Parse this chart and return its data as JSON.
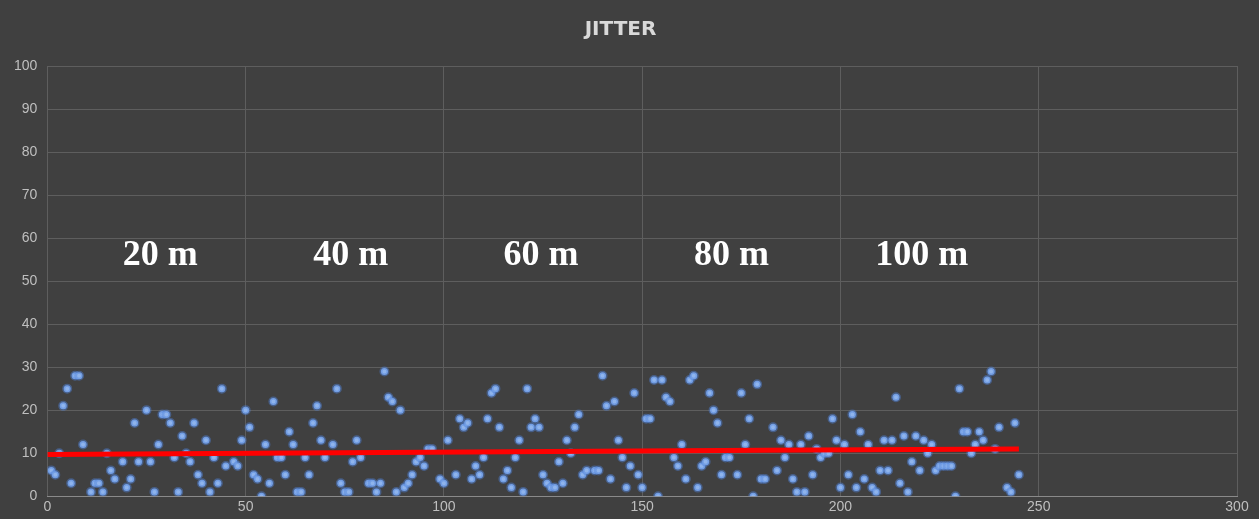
{
  "chart_data": {
    "type": "scatter",
    "title": "JITTER",
    "xlim": [
      0,
      300
    ],
    "xticks": [
      0,
      50,
      100,
      150,
      200,
      250,
      300
    ],
    "ylim": [
      0,
      100
    ],
    "yticks": [
      0,
      10,
      20,
      30,
      40,
      50,
      60,
      70,
      80,
      90,
      100
    ],
    "grid": true,
    "legend": false,
    "annotations": [
      "20 m",
      "40 m",
      "60 m",
      "80 m",
      "100 m"
    ],
    "series": [
      {
        "color": "#8fb4ec",
        "marker": "circle",
        "x": [
          1,
          2,
          3,
          4,
          5,
          6,
          7,
          8,
          9,
          11,
          12,
          13,
          14,
          15,
          16,
          17,
          19,
          20,
          21,
          22,
          23,
          25,
          26,
          27,
          28,
          29,
          30,
          31,
          32,
          33,
          34,
          35,
          36,
          37,
          38,
          39,
          40,
          41,
          42,
          43,
          44,
          45,
          47,
          48,
          49,
          50,
          51,
          52,
          53,
          54,
          55,
          56,
          57,
          58,
          59,
          60,
          61,
          62,
          63,
          64,
          65,
          66,
          67,
          68,
          69,
          70,
          72,
          73,
          74,
          75,
          76,
          77,
          78,
          79,
          81,
          82,
          83,
          84,
          85,
          86,
          87,
          88,
          89,
          90,
          91,
          92,
          93,
          94,
          95,
          96,
          97,
          99,
          100,
          101,
          103,
          104,
          105,
          106,
          107,
          108,
          109,
          110,
          111,
          112,
          113,
          114,
          115,
          116,
          117,
          118,
          119,
          120,
          121,
          122,
          123,
          124,
          125,
          126,
          127,
          128,
          129,
          130,
          131,
          132,
          133,
          134,
          135,
          136,
          138,
          139,
          140,
          141,
          142,
          143,
          144,
          145,
          146,
          147,
          148,
          149,
          150,
          151,
          152,
          153,
          154,
          155,
          156,
          157,
          158,
          159,
          160,
          161,
          162,
          163,
          164,
          165,
          166,
          167,
          168,
          169,
          170,
          171,
          172,
          174,
          175,
          176,
          177,
          178,
          179,
          180,
          181,
          183,
          184,
          185,
          186,
          187,
          188,
          189,
          190,
          191,
          192,
          193,
          194,
          195,
          196,
          197,
          198,
          199,
          200,
          201,
          202,
          203,
          204,
          205,
          206,
          207,
          208,
          209,
          210,
          211,
          212,
          213,
          214,
          215,
          216,
          217,
          218,
          219,
          220,
          221,
          222,
          223,
          224,
          225,
          226,
          227,
          228,
          229,
          230,
          231,
          232,
          233,
          234,
          235,
          236,
          237,
          238,
          239,
          240,
          242,
          243,
          244,
          245
        ],
        "values": [
          6,
          5,
          10,
          21,
          25,
          3,
          28,
          28,
          12,
          1,
          3,
          3,
          1,
          10,
          6,
          4,
          8,
          2,
          4,
          17,
          8,
          20,
          8,
          1,
          12,
          19,
          19,
          17,
          9,
          1,
          14,
          10,
          8,
          17,
          5,
          3,
          13,
          1,
          9,
          3,
          25,
          7,
          8,
          7,
          13,
          20,
          16,
          5,
          4,
          0,
          12,
          3,
          22,
          9,
          9,
          5,
          15,
          12,
          1,
          1,
          9,
          5,
          17,
          21,
          13,
          9,
          12,
          25,
          3,
          1,
          1,
          8,
          13,
          9,
          3,
          3,
          1,
          3,
          29,
          23,
          22,
          1,
          20,
          2,
          3,
          5,
          8,
          9,
          7,
          11,
          11,
          4,
          3,
          13,
          5,
          18,
          16,
          17,
          4,
          7,
          5,
          9,
          18,
          24,
          25,
          16,
          4,
          6,
          2,
          9,
          13,
          1,
          25,
          16,
          18,
          16,
          5,
          3,
          2,
          2,
          8,
          3,
          13,
          10,
          16,
          19,
          5,
          6,
          6,
          6,
          28,
          21,
          4,
          22,
          13,
          9,
          2,
          7,
          24,
          5,
          2,
          18,
          18,
          27,
          0,
          27,
          23,
          22,
          9,
          7,
          12,
          4,
          27,
          28,
          2,
          7,
          8,
          24,
          20,
          17,
          5,
          9,
          9,
          5,
          24,
          12,
          18,
          0,
          26,
          4,
          4,
          16,
          6,
          13,
          9,
          12,
          4,
          1,
          12,
          1,
          14,
          5,
          11,
          9,
          10,
          10,
          18,
          13,
          2,
          12,
          5,
          19,
          2,
          15,
          4,
          12,
          2,
          1,
          6,
          13,
          6,
          13,
          23,
          3,
          14,
          1,
          8,
          14,
          6,
          13,
          10,
          12,
          6,
          7,
          7,
          7,
          7,
          0,
          25,
          15,
          15,
          10,
          12,
          15,
          13,
          27,
          29,
          11,
          16,
          2,
          1,
          17,
          5
        ]
      },
      {
        "type": "line",
        "marker": "none",
        "color": "#ff0000",
        "x": [
          0,
          245
        ],
        "values": [
          9.7,
          11
        ]
      }
    ]
  }
}
